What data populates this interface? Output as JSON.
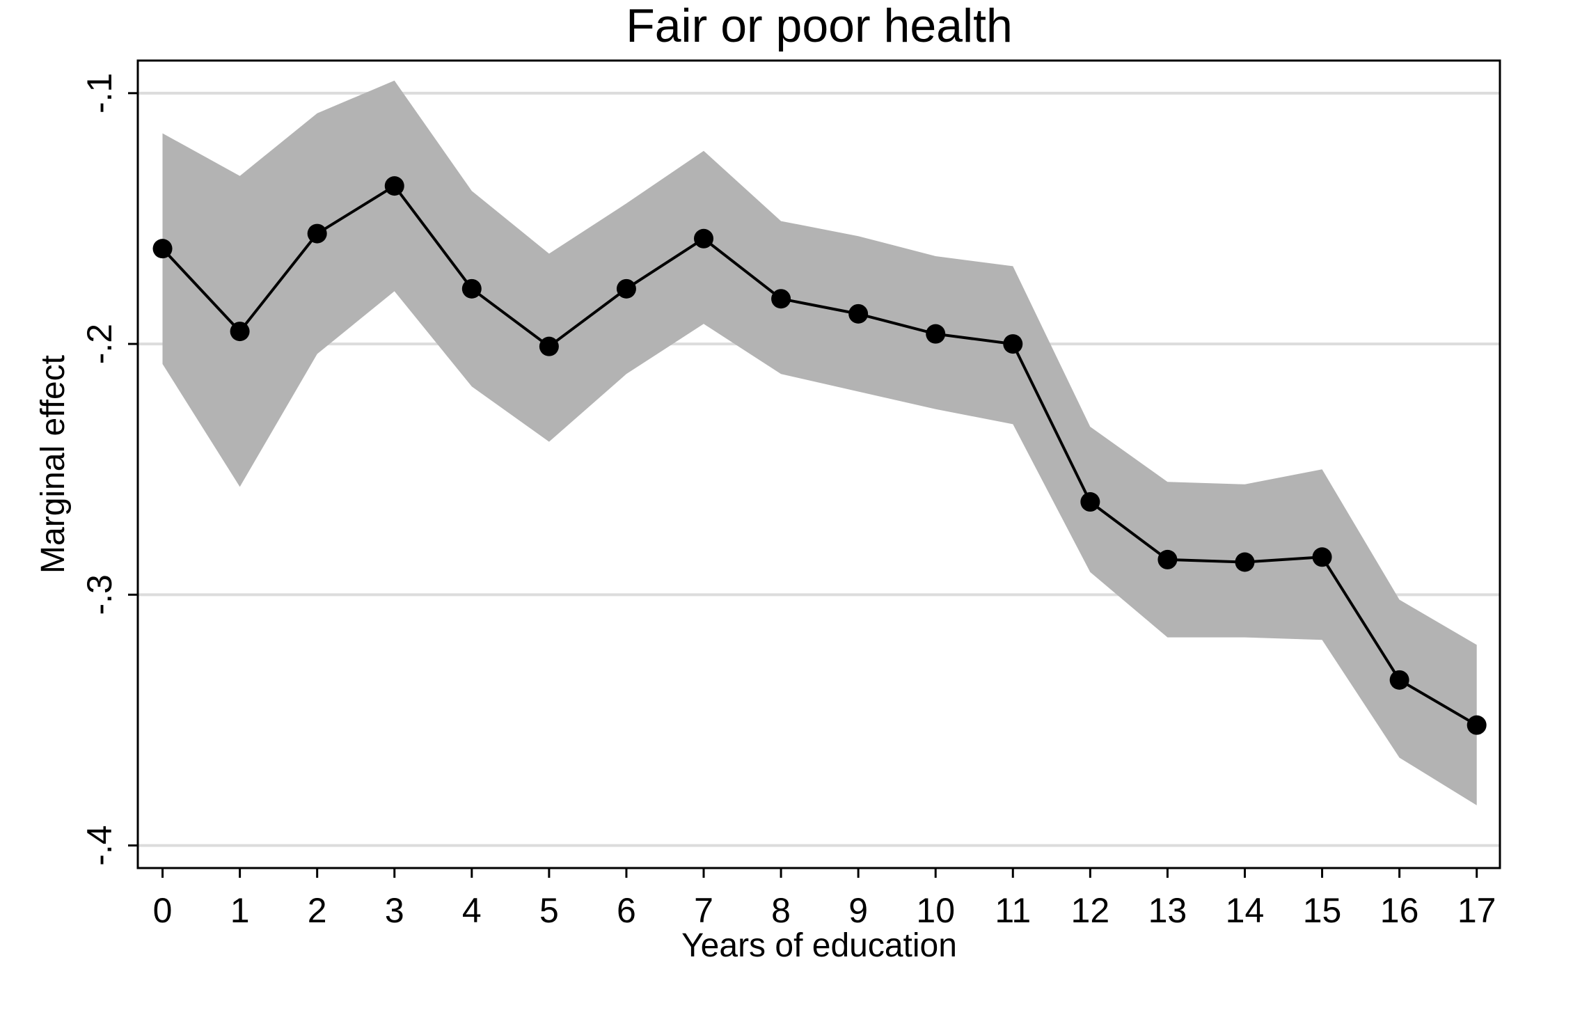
{
  "chart_data": {
    "type": "line",
    "title": "Fair or poor health",
    "xlabel": "Years of education",
    "ylabel": "Marginal effect",
    "x": [
      0,
      1,
      2,
      3,
      4,
      5,
      6,
      7,
      8,
      9,
      10,
      11,
      12,
      13,
      14,
      15,
      16,
      17
    ],
    "x_tick_labels": [
      "0",
      "1",
      "2",
      "3",
      "4",
      "5",
      "6",
      "7",
      "8",
      "9",
      "10",
      "11",
      "12",
      "13",
      "14",
      "15",
      "16",
      "17"
    ],
    "y_ticks": [
      -0.1,
      -0.2,
      -0.3,
      -0.4
    ],
    "y_tick_labels": [
      "-.1",
      "-.2",
      "-.3",
      "-.4"
    ],
    "ylim": [
      -0.409,
      -0.087
    ],
    "xlim": [
      -0.32,
      17.3
    ],
    "grid": "horizontal",
    "series": [
      {
        "values": [
          -0.162,
          -0.195,
          -0.156,
          -0.137,
          -0.178,
          -0.201,
          -0.178,
          -0.158,
          -0.182,
          -0.188,
          -0.196,
          -0.2,
          -0.263,
          -0.286,
          -0.287,
          -0.285,
          -0.334,
          -0.352
        ],
        "lower": [
          -0.208,
          -0.257,
          -0.204,
          -0.179,
          -0.217,
          -0.239,
          -0.212,
          -0.192,
          -0.212,
          -0.219,
          -0.226,
          -0.232,
          -0.291,
          -0.317,
          -0.317,
          -0.318,
          -0.365,
          -0.384
        ],
        "upper": [
          -0.116,
          -0.133,
          -0.108,
          -0.095,
          -0.139,
          -0.164,
          -0.144,
          -0.123,
          -0.151,
          -0.157,
          -0.165,
          -0.169,
          -0.233,
          -0.255,
          -0.256,
          -0.25,
          -0.302,
          -0.32
        ]
      }
    ],
    "colors": {
      "line": "#000000",
      "marker": "#000000",
      "band": "#b3b3b3",
      "grid": "#dcdcdc",
      "frame": "#000000"
    }
  }
}
